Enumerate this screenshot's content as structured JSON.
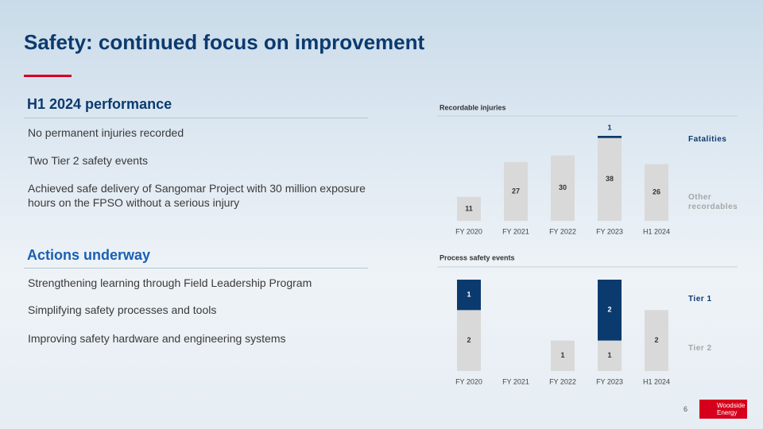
{
  "title": "Safety: continued focus on improvement",
  "sections": [
    {
      "heading": "H1 2024 performance",
      "items": [
        "No permanent injuries recorded",
        "Two Tier 2 safety events",
        "Achieved safe delivery of Sangomar Project with 30 million exposure hours on the FPSO without a serious injury"
      ]
    },
    {
      "heading": "Actions underway",
      "items": [
        "Strengthening learning through Field Leadership Program",
        "Simplifying safety processes and tools",
        "Improving safety hardware and engineering systems"
      ]
    }
  ],
  "chart_data": [
    {
      "type": "bar",
      "stacked": true,
      "title": "Recordable injuries",
      "categories": [
        "FY 2020",
        "FY 2021",
        "FY 2022",
        "FY 2023",
        "H1 2024"
      ],
      "series": [
        {
          "name": "Other recordables",
          "color": "#d9d9d9",
          "values": [
            11,
            27,
            30,
            38,
            26
          ]
        },
        {
          "name": "Fatalities",
          "color": "#0b3a6e",
          "values": [
            0,
            0,
            0,
            1,
            0
          ]
        }
      ]
    },
    {
      "type": "bar",
      "stacked": true,
      "title": "Process safety events",
      "categories": [
        "FY 2020",
        "FY 2021",
        "FY 2022",
        "FY 2023",
        "H1 2024"
      ],
      "series": [
        {
          "name": "Tier 2",
          "color": "#d9d9d9",
          "values": [
            2,
            0,
            1,
            1,
            2
          ]
        },
        {
          "name": "Tier 1",
          "color": "#0b3a6e",
          "values": [
            1,
            0,
            0,
            2,
            0
          ]
        }
      ]
    }
  ],
  "page_number": "6",
  "logo": "Woodside Energy"
}
